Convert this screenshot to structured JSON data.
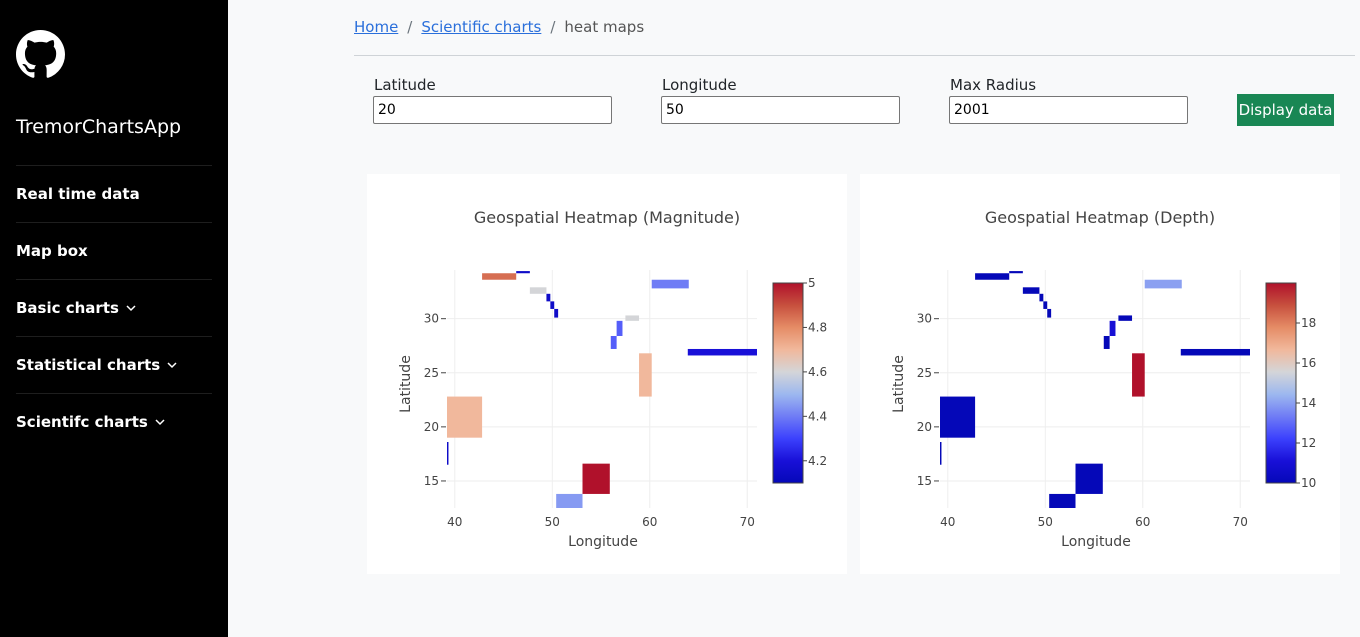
{
  "sidebar": {
    "app_title": "TremorChartsApp",
    "logo_icon": "github-icon",
    "items": [
      {
        "label": "Real time data",
        "dropdown": false
      },
      {
        "label": "Map box",
        "dropdown": false
      },
      {
        "label": "Basic charts",
        "dropdown": true
      },
      {
        "label": "Statistical charts",
        "dropdown": true
      },
      {
        "label": "Scientifc charts",
        "dropdown": true
      }
    ]
  },
  "breadcrumb": {
    "home": "Home",
    "scientific": "Scientific charts",
    "current": "heat maps",
    "separator": "/"
  },
  "form": {
    "latitude_label": "Latitude",
    "latitude_value": "20",
    "longitude_label": "Longitude",
    "longitude_value": "50",
    "radius_label": "Max Radius",
    "radius_value": "2001",
    "button_label": "Display data"
  },
  "colors": {
    "button": "#198754",
    "link": "#2a6fdb",
    "colorscale": [
      "#0508b8",
      "#1910d8",
      "#3c41fd",
      "#6f7cf5",
      "#9db8ef",
      "#d4d5d8",
      "#f1b89c",
      "#e58c66",
      "#c7503e",
      "#b0112b"
    ]
  },
  "chart_data": [
    {
      "type": "heatmap",
      "title": "Geospatial Heatmap (Magnitude)",
      "xlabel": "Longitude",
      "ylabel": "Latitude",
      "xlim": [
        39.2,
        71
      ],
      "ylim": [
        12.5,
        34.5
      ],
      "xticks": [
        40,
        50,
        60,
        70
      ],
      "yticks": [
        15,
        20,
        25,
        30
      ],
      "grid": true,
      "colorbar": {
        "min": 4.1,
        "max": 5.0,
        "ticks": [
          "4.2",
          "4.4",
          "4.6",
          "4.8",
          "5"
        ]
      },
      "cells": [
        {
          "x0": 42.8,
          "x1": 46.3,
          "y0": 33.6,
          "y1": 34.2,
          "value": 4.85
        },
        {
          "x0": 46.3,
          "x1": 47.7,
          "y0": 34.2,
          "y1": 34.4,
          "value": 4.15
        },
        {
          "x0": 47.7,
          "x1": 49.4,
          "y0": 32.3,
          "y1": 32.9,
          "value": 4.6
        },
        {
          "x0": 49.4,
          "x1": 49.8,
          "y0": 31.6,
          "y1": 32.3,
          "value": 4.15
        },
        {
          "x0": 49.8,
          "x1": 50.2,
          "y0": 30.9,
          "y1": 31.6,
          "value": 4.15
        },
        {
          "x0": 50.2,
          "x1": 50.6,
          "y0": 30.1,
          "y1": 30.9,
          "value": 4.15
        },
        {
          "x0": 60.2,
          "x1": 64.0,
          "y0": 32.8,
          "y1": 33.6,
          "value": 4.4
        },
        {
          "x0": 56.6,
          "x1": 57.2,
          "y0": 28.4,
          "y1": 29.8,
          "value": 4.35
        },
        {
          "x0": 57.5,
          "x1": 58.9,
          "y0": 29.8,
          "y1": 30.3,
          "value": 4.6
        },
        {
          "x0": 56.0,
          "x1": 56.6,
          "y0": 27.2,
          "y1": 28.4,
          "value": 4.35
        },
        {
          "x0": 63.9,
          "x1": 71.0,
          "y0": 26.6,
          "y1": 27.2,
          "value": 4.2
        },
        {
          "x0": 58.9,
          "x1": 60.2,
          "y0": 22.8,
          "y1": 26.8,
          "value": 4.7
        },
        {
          "x0": 39.2,
          "x1": 42.8,
          "y0": 19.0,
          "y1": 22.8,
          "value": 4.7
        },
        {
          "x0": 39.2,
          "x1": 39.35,
          "y0": 16.5,
          "y1": 18.6,
          "value": 4.15
        },
        {
          "x0": 53.1,
          "x1": 55.9,
          "y0": 13.8,
          "y1": 16.6,
          "value": 5.0
        },
        {
          "x0": 50.4,
          "x1": 53.1,
          "y0": 12.5,
          "y1": 13.8,
          "value": 4.45
        }
      ]
    },
    {
      "type": "heatmap",
      "title": "Geospatial Heatmap (Depth)",
      "xlabel": "Longitude",
      "ylabel": "Latitude",
      "xlim": [
        39.2,
        71
      ],
      "ylim": [
        12.5,
        34.5
      ],
      "xticks": [
        40,
        50,
        60,
        70
      ],
      "yticks": [
        15,
        20,
        25,
        30
      ],
      "grid": true,
      "colorbar": {
        "min": 10,
        "max": 20,
        "ticks": [
          "10",
          "12",
          "14",
          "16",
          "18"
        ]
      },
      "cells": [
        {
          "x0": 42.8,
          "x1": 46.3,
          "y0": 33.6,
          "y1": 34.2,
          "value": 10
        },
        {
          "x0": 46.3,
          "x1": 47.7,
          "y0": 34.2,
          "y1": 34.4,
          "value": 10
        },
        {
          "x0": 47.7,
          "x1": 49.4,
          "y0": 32.3,
          "y1": 32.9,
          "value": 10
        },
        {
          "x0": 49.4,
          "x1": 49.8,
          "y0": 31.6,
          "y1": 32.3,
          "value": 10
        },
        {
          "x0": 49.8,
          "x1": 50.2,
          "y0": 30.9,
          "y1": 31.6,
          "value": 10
        },
        {
          "x0": 50.2,
          "x1": 50.6,
          "y0": 30.1,
          "y1": 30.9,
          "value": 10
        },
        {
          "x0": 60.2,
          "x1": 64.0,
          "y0": 32.8,
          "y1": 33.6,
          "value": 14
        },
        {
          "x0": 56.6,
          "x1": 57.2,
          "y0": 28.4,
          "y1": 29.8,
          "value": 11
        },
        {
          "x0": 57.5,
          "x1": 58.9,
          "y0": 29.8,
          "y1": 30.3,
          "value": 10
        },
        {
          "x0": 56.0,
          "x1": 56.6,
          "y0": 27.2,
          "y1": 28.4,
          "value": 10
        },
        {
          "x0": 63.9,
          "x1": 71.0,
          "y0": 26.6,
          "y1": 27.2,
          "value": 10
        },
        {
          "x0": 58.9,
          "x1": 60.2,
          "y0": 22.8,
          "y1": 26.8,
          "value": 20
        },
        {
          "x0": 39.2,
          "x1": 42.8,
          "y0": 19.0,
          "y1": 22.8,
          "value": 10
        },
        {
          "x0": 39.2,
          "x1": 39.35,
          "y0": 16.5,
          "y1": 18.6,
          "value": 10
        },
        {
          "x0": 53.1,
          "x1": 55.9,
          "y0": 13.8,
          "y1": 16.6,
          "value": 10
        },
        {
          "x0": 50.4,
          "x1": 53.1,
          "y0": 12.5,
          "y1": 13.8,
          "value": 10
        }
      ]
    }
  ]
}
